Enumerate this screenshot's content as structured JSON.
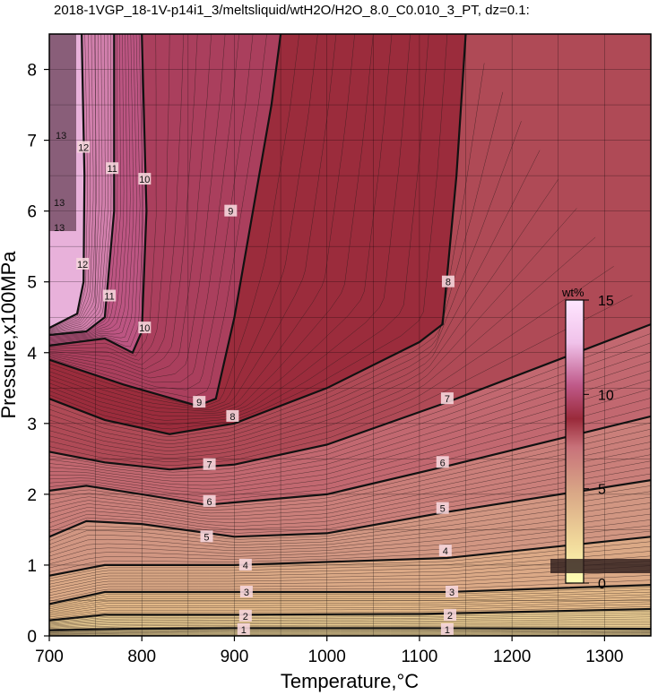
{
  "chart_data": {
    "type": "heatmap",
    "title": "2018-1VGP_18-1V-p14i1_3/meltsliquid/wtH2O/H2O_8.0_C0.010_3_PT, dz=0.1:",
    "xlabel": "Temperature,°C",
    "ylabel": "Pressure,x100MPa",
    "xlim": [
      700,
      1350
    ],
    "ylim": [
      0,
      8.5
    ],
    "x_ticks": [
      "700",
      "800",
      "900",
      "1000",
      "1100",
      "1200",
      "1300"
    ],
    "y_ticks": [
      "0",
      "1",
      "2",
      "3",
      "4",
      "5",
      "6",
      "7",
      "8"
    ],
    "grid": true,
    "colorbar": {
      "unit": "wt%",
      "range": [
        0,
        15
      ],
      "ticks": [
        "0",
        "5",
        "10",
        "15"
      ],
      "colors": [
        "#ffffb4",
        "#e9c08a",
        "#d39b84",
        "#c36a72",
        "#9a2a3a",
        "#c05a8a",
        "#f0c2ea",
        "#ffe6ff"
      ]
    },
    "contour_interval": 0.1,
    "major_contours": [
      {
        "level": "1",
        "points": [
          [
            700,
            0.08
          ],
          [
            780,
            0.1
          ],
          [
            900,
            0.11
          ],
          [
            1100,
            0.11
          ],
          [
            1350,
            0.1
          ]
        ],
        "labels": [
          [
            910,
            0.09
          ],
          [
            1130,
            0.09
          ]
        ]
      },
      {
        "level": "2",
        "points": [
          [
            700,
            0.22
          ],
          [
            760,
            0.3
          ],
          [
            900,
            0.3
          ],
          [
            1100,
            0.31
          ],
          [
            1350,
            0.38
          ]
        ],
        "labels": [
          [
            912,
            0.28
          ],
          [
            1133,
            0.29
          ]
        ]
      },
      {
        "level": "3",
        "points": [
          [
            700,
            0.45
          ],
          [
            760,
            0.62
          ],
          [
            900,
            0.62
          ],
          [
            1130,
            0.62
          ],
          [
            1350,
            0.72
          ]
        ],
        "labels": [
          [
            913,
            0.62
          ],
          [
            1135,
            0.62
          ]
        ]
      },
      {
        "level": "4",
        "points": [
          [
            700,
            0.85
          ],
          [
            760,
            1.0
          ],
          [
            900,
            1.0
          ],
          [
            1130,
            1.1
          ],
          [
            1350,
            1.4
          ]
        ],
        "labels": [
          [
            912,
            1.0
          ],
          [
            1128,
            1.2
          ]
        ]
      },
      {
        "level": "5",
        "points": [
          [
            700,
            1.4
          ],
          [
            740,
            1.62
          ],
          [
            800,
            1.58
          ],
          [
            900,
            1.4
          ],
          [
            1000,
            1.45
          ],
          [
            1130,
            1.75
          ],
          [
            1350,
            2.2
          ]
        ],
        "labels": [
          [
            870,
            1.4
          ],
          [
            1125,
            1.8
          ]
        ]
      },
      {
        "level": "6",
        "points": [
          [
            700,
            2.05
          ],
          [
            740,
            2.12
          ],
          [
            800,
            2.0
          ],
          [
            870,
            1.85
          ],
          [
            1000,
            2.0
          ],
          [
            1130,
            2.4
          ],
          [
            1350,
            3.1
          ]
        ],
        "labels": [
          [
            873,
            1.9
          ],
          [
            1125,
            2.45
          ]
        ]
      },
      {
        "level": "7",
        "points": [
          [
            700,
            2.6
          ],
          [
            760,
            2.45
          ],
          [
            830,
            2.35
          ],
          [
            900,
            2.42
          ],
          [
            1000,
            2.7
          ],
          [
            1130,
            3.3
          ],
          [
            1350,
            4.4
          ]
        ],
        "labels": [
          [
            873,
            2.42
          ],
          [
            1130,
            3.35
          ]
        ]
      },
      {
        "level": "8",
        "points": [
          [
            700,
            3.35
          ],
          [
            760,
            3.05
          ],
          [
            830,
            2.85
          ],
          [
            900,
            3.0
          ],
          [
            1000,
            3.5
          ],
          [
            1100,
            4.15
          ],
          [
            1125,
            4.4
          ],
          [
            1140,
            6.5
          ],
          [
            1150,
            8.5
          ]
        ],
        "labels": [
          [
            898,
            3.1
          ],
          [
            1131,
            5.0
          ]
        ]
      },
      {
        "level": "9",
        "points": [
          [
            700,
            3.9
          ],
          [
            780,
            3.55
          ],
          [
            860,
            3.25
          ],
          [
            880,
            3.35
          ],
          [
            900,
            4.5
          ],
          [
            940,
            7.5
          ],
          [
            950,
            8.5
          ]
        ],
        "labels": [
          [
            862,
            3.3
          ],
          [
            896,
            6.0
          ]
        ]
      },
      {
        "level": "10",
        "points": [
          [
            700,
            4.1
          ],
          [
            760,
            4.2
          ],
          [
            790,
            4.0
          ],
          [
            800,
            4.3
          ],
          [
            805,
            6.0
          ],
          [
            800,
            8.5
          ]
        ],
        "labels": [
          [
            803,
            4.35
          ],
          [
            803,
            6.45
          ]
        ]
      },
      {
        "level": "11",
        "points": [
          [
            700,
            4.25
          ],
          [
            740,
            4.3
          ],
          [
            760,
            4.5
          ],
          [
            770,
            6.0
          ],
          [
            770,
            8.5
          ]
        ],
        "labels": [
          [
            765,
            4.8
          ],
          [
            768,
            6.6
          ]
        ]
      },
      {
        "level": "12",
        "points": [
          [
            700,
            4.35
          ],
          [
            730,
            4.55
          ],
          [
            737,
            5.0
          ],
          [
            738,
            6.5
          ],
          [
            735,
            8.5
          ]
        ],
        "labels": [
          [
            736,
            5.25
          ],
          [
            737,
            6.9
          ]
        ]
      }
    ],
    "label_texts": [
      "1",
      "2",
      "3",
      "4",
      "5",
      "6",
      "7",
      "8",
      "9",
      "10",
      "11",
      "12",
      "13"
    ]
  }
}
